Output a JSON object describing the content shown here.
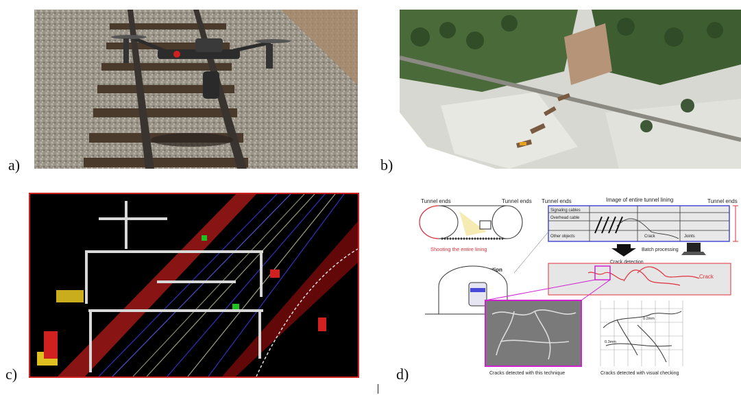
{
  "labels": {
    "a": "a)",
    "b": "b)",
    "c": "c)",
    "d": "d)"
  },
  "panel_d": {
    "tunnel_ends_left_1": "Tunnel ends",
    "tunnel_ends_right_1": "Tunnel ends",
    "tunnel_ends_left_2": "Tunnel ends",
    "image_title": "Image of entire tunnel lining",
    "tunnel_ends_right_2": "Tunnel ends",
    "shooting": "Shooting the entire lining",
    "signaling_cables": "Signaling cables",
    "overhead_cable": "Overhead cable",
    "other_objects": "Other objects",
    "crack_label_1": "Crack",
    "joints": "Joints",
    "batch_processing": "Batch processing",
    "crack_detection": "Crack detection",
    "cross_section": "Cross section",
    "crack_label_2": "Crack",
    "caption_left": "Cracks detected with this technique",
    "caption_right": "Cracks detected with visual checking",
    "measure_1": "0.2mm",
    "measure_2": "0.3mm"
  },
  "colors": {
    "crack_red": "#e0303a",
    "magenta": "#d020d0",
    "blue_frame": "#4a4ad8",
    "cad_bg": "#000000",
    "cad_border": "#d02020"
  }
}
